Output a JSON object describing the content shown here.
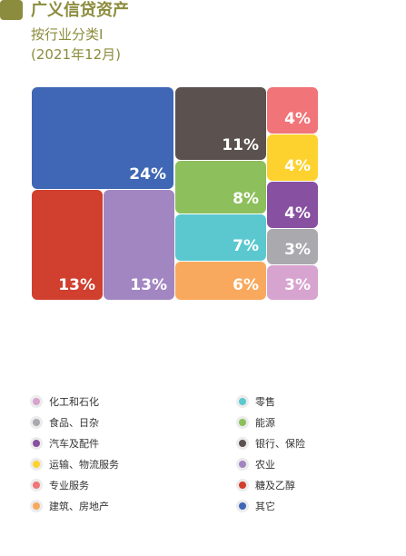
{
  "header": {
    "title": "广义信贷资产",
    "subtitle_line1": "按行业分类I",
    "subtitle_line2": "(2021年12月)",
    "accent_color": "#8c8c3e",
    "subtitle_color": "#8c8c3e",
    "title_color": "#8c8c3e"
  },
  "chart_data": {
    "type": "treemap",
    "title": "广义信贷资产",
    "subtitle": "按行业分类I (2021年12月)",
    "unit": "%",
    "items": [
      {
        "name": "其它",
        "value": 24,
        "label": "24%",
        "color": "#3f67b5"
      },
      {
        "name": "糖及乙醇",
        "value": 13,
        "label": "13%",
        "color": "#d13f2e"
      },
      {
        "name": "农业",
        "value": 13,
        "label": "13%",
        "color": "#a286c1"
      },
      {
        "name": "银行、保险",
        "value": 11,
        "label": "11%",
        "color": "#5b524f"
      },
      {
        "name": "能源",
        "value": 8,
        "label": "8%",
        "color": "#8dbf5c"
      },
      {
        "name": "零售",
        "value": 7,
        "label": "7%",
        "color": "#5bc8d0"
      },
      {
        "name": "建筑、房地产",
        "value": 6,
        "label": "6%",
        "color": "#f8a95d"
      },
      {
        "name": "专业服务",
        "value": 4,
        "label": "4%",
        "color": "#f07478"
      },
      {
        "name": "运输、物流服务",
        "value": 4,
        "label": "4%",
        "color": "#fdd22f"
      },
      {
        "name": "汽车及配件",
        "value": 4,
        "label": "4%",
        "color": "#8750a0"
      },
      {
        "name": "食品、日杂",
        "value": 3,
        "label": "3%",
        "color": "#a9a9ae"
      },
      {
        "name": "化工和石化",
        "value": 3,
        "label": "3%",
        "color": "#d7a3cf"
      }
    ],
    "legend": [
      {
        "label": "化工和石化",
        "color": "#d7a3cf"
      },
      {
        "label": "零售",
        "color": "#5bc8d0"
      },
      {
        "label": "食品、日杂",
        "color": "#a9a9ae"
      },
      {
        "label": "能源",
        "color": "#8dbf5c"
      },
      {
        "label": "汽车及配件",
        "color": "#8750a0"
      },
      {
        "label": "银行、保险",
        "color": "#5b524f"
      },
      {
        "label": "运输、物流服务",
        "color": "#fdd22f"
      },
      {
        "label": "农业",
        "color": "#a286c1"
      },
      {
        "label": "专业服务",
        "color": "#f07478"
      },
      {
        "label": "糖及乙醇",
        "color": "#d13f2e"
      },
      {
        "label": "建筑、房地产",
        "color": "#f8a95d"
      },
      {
        "label": "其它",
        "color": "#3f67b5"
      }
    ],
    "legend_position": "bottom"
  }
}
